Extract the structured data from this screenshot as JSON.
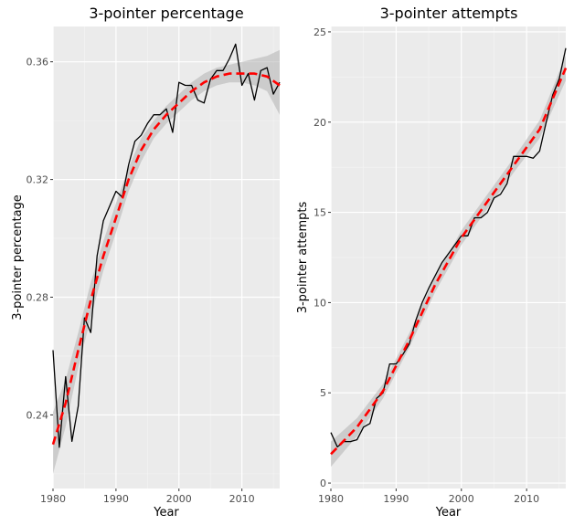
{
  "chart_data": [
    {
      "type": "line",
      "title": "3-pointer percentage",
      "xlabel": "Year",
      "ylabel": "3-pointer percentage",
      "xlim": [
        1980,
        2016
      ],
      "ylim": [
        0.215,
        0.372
      ],
      "x_ticks": [
        1980,
        1990,
        2000,
        2010
      ],
      "x_tick_labels": [
        "1980",
        "1990",
        "2000",
        "2010"
      ],
      "y_ticks": [
        0.24,
        0.28,
        0.32,
        0.36
      ],
      "y_tick_labels": [
        "0.24",
        "0.28",
        "0.32",
        "0.36"
      ],
      "grid": true,
      "legend": "none",
      "colors": {
        "observed": "#000000",
        "trend": "#ff0000",
        "band": "#b3b3b3",
        "panel": "#ebebeb"
      },
      "series": [
        {
          "type": "line",
          "x": [
            1980,
            1981,
            1982,
            1983,
            1984,
            1985,
            1986,
            1987,
            1988,
            1989,
            1990,
            1991,
            1992,
            1993,
            1994,
            1995,
            1996,
            1997,
            1998,
            1999,
            2000,
            2001,
            2002,
            2003,
            2004,
            2005,
            2006,
            2007,
            2008,
            2009,
            2010,
            2011,
            2012,
            2013,
            2014,
            2015,
            2016
          ],
          "values": [
            0.262,
            0.229,
            0.253,
            0.231,
            0.243,
            0.273,
            0.268,
            0.294,
            0.306,
            0.311,
            0.316,
            0.314,
            0.325,
            0.333,
            0.335,
            0.339,
            0.342,
            0.342,
            0.344,
            0.336,
            0.353,
            0.352,
            0.352,
            0.347,
            0.346,
            0.354,
            0.357,
            0.357,
            0.361,
            0.366,
            0.352,
            0.356,
            0.347,
            0.357,
            0.358,
            0.349,
            0.353
          ]
        },
        {
          "type": "trend",
          "x": [
            1980,
            1982,
            1984,
            1986,
            1988,
            1990,
            1992,
            1994,
            1996,
            1998,
            2000,
            2002,
            2004,
            2006,
            2008,
            2010,
            2012,
            2014,
            2016
          ],
          "values": [
            0.23,
            0.244,
            0.262,
            0.279,
            0.294,
            0.307,
            0.32,
            0.33,
            0.337,
            0.342,
            0.346,
            0.35,
            0.353,
            0.355,
            0.356,
            0.356,
            0.356,
            0.355,
            0.352
          ],
          "lower": [
            0.22,
            0.236,
            0.256,
            0.273,
            0.289,
            0.302,
            0.316,
            0.326,
            0.334,
            0.339,
            0.343,
            0.347,
            0.35,
            0.352,
            0.353,
            0.353,
            0.352,
            0.35,
            0.342
          ],
          "upper": [
            0.241,
            0.252,
            0.268,
            0.285,
            0.299,
            0.312,
            0.324,
            0.334,
            0.34,
            0.345,
            0.349,
            0.353,
            0.356,
            0.358,
            0.359,
            0.36,
            0.361,
            0.362,
            0.364
          ]
        }
      ]
    },
    {
      "type": "line",
      "title": "3-pointer attempts",
      "xlabel": "Year",
      "ylabel": "3-pointer attempts",
      "xlim": [
        1980,
        2016
      ],
      "ylim": [
        -0.3,
        25.3
      ],
      "x_ticks": [
        1980,
        1990,
        2000,
        2010
      ],
      "x_tick_labels": [
        "1980",
        "1990",
        "2000",
        "2010"
      ],
      "y_ticks": [
        0,
        5,
        10,
        15,
        20,
        25
      ],
      "y_tick_labels": [
        "0",
        "5",
        "10",
        "15",
        "20",
        "25"
      ],
      "grid": true,
      "legend": "none",
      "colors": {
        "observed": "#000000",
        "trend": "#ff0000",
        "band": "#b3b3b3",
        "panel": "#ebebeb"
      },
      "series": [
        {
          "type": "line",
          "x": [
            1980,
            1981,
            1982,
            1983,
            1984,
            1985,
            1986,
            1987,
            1988,
            1989,
            1990,
            1991,
            1992,
            1993,
            1994,
            1995,
            1996,
            1997,
            1998,
            1999,
            2000,
            2001,
            2002,
            2003,
            2004,
            2005,
            2006,
            2007,
            2008,
            2009,
            2010,
            2011,
            2012,
            2013,
            2014,
            2015,
            2016
          ],
          "values": [
            2.8,
            2.0,
            2.3,
            2.3,
            2.4,
            3.1,
            3.3,
            4.7,
            5.0,
            6.6,
            6.6,
            7.1,
            7.7,
            9.0,
            10.0,
            10.8,
            11.5,
            12.2,
            12.7,
            13.2,
            13.7,
            13.7,
            14.7,
            14.7,
            15.0,
            15.8,
            16.0,
            16.6,
            18.1,
            18.1,
            18.1,
            18.0,
            18.4,
            20.0,
            21.5,
            22.4,
            24.1
          ]
        },
        {
          "type": "trend",
          "x": [
            1980,
            1984,
            1988,
            1992,
            1996,
            2000,
            2004,
            2008,
            2012,
            2016
          ],
          "values": [
            1.6,
            3.1,
            5.1,
            7.9,
            11.0,
            13.6,
            15.6,
            17.6,
            19.6,
            23.0
          ],
          "lower": [
            0.9,
            2.6,
            4.7,
            7.5,
            10.6,
            13.2,
            15.2,
            17.2,
            19.1,
            22.3
          ],
          "upper": [
            2.3,
            3.6,
            5.5,
            8.3,
            11.4,
            14.0,
            16.0,
            18.0,
            20.1,
            23.7
          ]
        }
      ]
    }
  ]
}
